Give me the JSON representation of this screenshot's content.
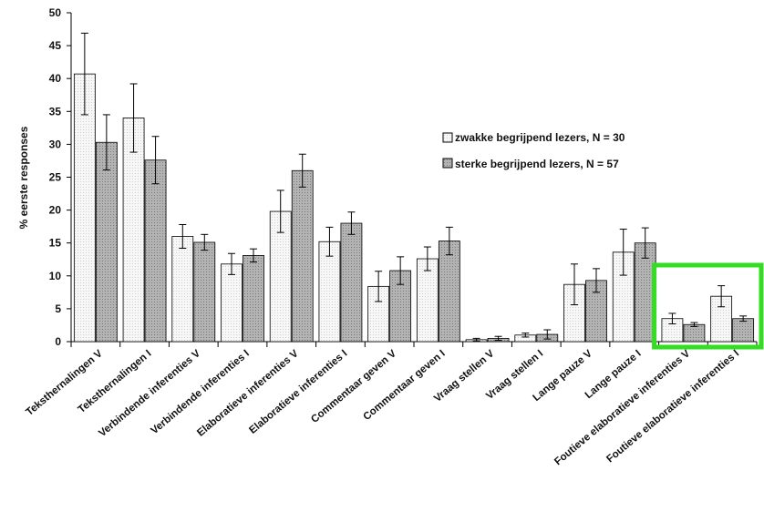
{
  "chart_data": {
    "type": "bar",
    "ylabel": "% eerste responses",
    "xlabel": "",
    "ylim": [
      0,
      50
    ],
    "yticks": [
      0,
      5,
      10,
      15,
      20,
      25,
      30,
      35,
      40,
      45,
      50
    ],
    "grid": false,
    "legend_placement": "right",
    "categories": [
      "Teksthernalingen V",
      "Teksthernalingen I",
      "Verbindende inferenties V",
      "Verbindende inferenties I",
      "Elaboratieve inferenties V",
      "Elaboratieve inferenties I",
      "Commentaar geven V",
      "Commentaar geven I",
      "Vraag stellen V",
      "Vraag stellen I",
      "Lange pauze V",
      "Lange pauze I",
      "Foutieve elaboratieve inferenties V",
      "Foutieve elaboratieve inferenties I"
    ],
    "series": [
      {
        "name": "zwakke begrijpend lezers, N = 30",
        "color": "#f2f2f2",
        "values": [
          40.7,
          34.0,
          16.0,
          11.8,
          19.8,
          15.2,
          8.4,
          12.6,
          0.3,
          1.0,
          8.7,
          13.6,
          3.5,
          6.9
        ],
        "errors": [
          6.2,
          5.2,
          1.8,
          1.6,
          3.2,
          2.2,
          2.3,
          1.8,
          0.2,
          0.3,
          3.1,
          3.5,
          0.8,
          1.6
        ]
      },
      {
        "name": "sterke begrijpend lezers, N = 57",
        "color": "#a6a6a6",
        "values": [
          30.3,
          27.6,
          15.1,
          13.1,
          26.0,
          18.0,
          10.8,
          15.3,
          0.5,
          1.1,
          9.3,
          15.0,
          2.6,
          3.5
        ],
        "errors": [
          4.2,
          3.6,
          1.2,
          1.0,
          2.5,
          1.7,
          2.1,
          2.1,
          0.3,
          0.7,
          1.8,
          2.3,
          0.3,
          0.4
        ]
      }
    ],
    "highlight": {
      "categories": [
        12,
        13
      ],
      "color": "#33dd22"
    }
  }
}
